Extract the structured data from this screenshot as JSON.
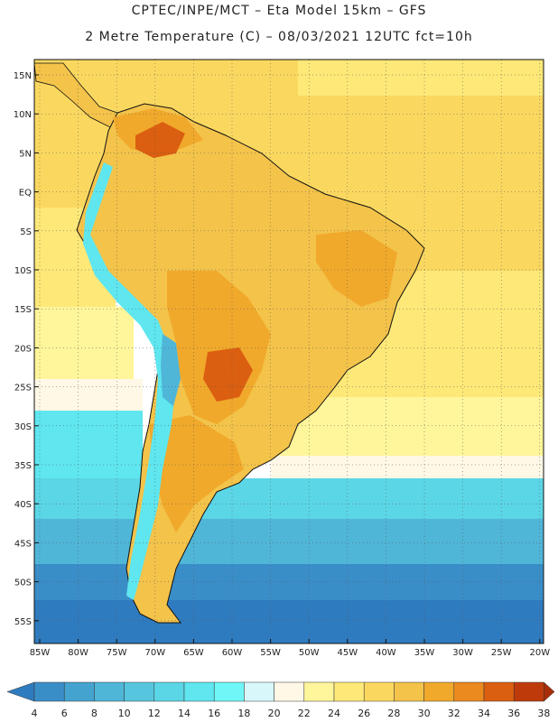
{
  "title_line1": "CPTEC/INPE/MCT –  Eta Model 15km – GFS",
  "title_line2": "2 Metre Temperature (C) – 08/03/2021 12UTC fct=10h",
  "lat_labels": [
    "15N",
    "10N",
    "5N",
    "EQ",
    "5S",
    "10S",
    "15S",
    "20S",
    "25S",
    "30S",
    "35S",
    "40S",
    "45S",
    "50S",
    "55S"
  ],
  "lon_labels": [
    "85W",
    "80W",
    "75W",
    "70W",
    "65W",
    "60W",
    "55W",
    "50W",
    "45W",
    "40W",
    "35W",
    "30W",
    "25W",
    "20W"
  ],
  "colorbar": {
    "ticks": [
      "4",
      "6",
      "8",
      "10",
      "12",
      "14",
      "16",
      "18",
      "20",
      "22",
      "24",
      "26",
      "28",
      "30",
      "32",
      "34",
      "36",
      "38"
    ],
    "colors": [
      "#2f7bbf",
      "#3a8ec8",
      "#45a3cf",
      "#4fb6d8",
      "#56c6df",
      "#5bd6e6",
      "#5fe6ef",
      "#6ff7f7",
      "#d8f7fa",
      "#fff8e6",
      "#fff59a",
      "#fde878",
      "#fad860",
      "#f3c34a",
      "#f1a92b",
      "#ea8a1f",
      "#db5f10",
      "#bf3a0b",
      "#a72e08"
    ]
  },
  "map_colors": {
    "ocean_warm": "#fad860",
    "ocean_mid": "#fde878",
    "ocean_light": "#fff59a",
    "ocean_pale": "#fff8e6",
    "ocean_cold1": "#5fe6ef",
    "ocean_cold2": "#4fb6d8",
    "ocean_cold3": "#3a8ec8",
    "ocean_cold4": "#2f7bbf",
    "land_hot": "#f1a92b",
    "land_warm": "#f3c34a",
    "land_veryhot": "#db5f10",
    "andes": "#5fe6ef",
    "border": "#111111"
  }
}
